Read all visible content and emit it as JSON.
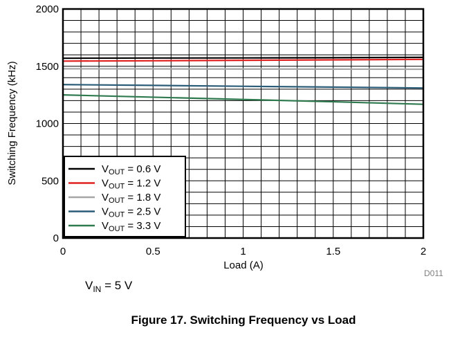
{
  "chart_data": {
    "type": "line",
    "title": "",
    "xlabel": "Load (A)",
    "ylabel": "Switching Frequency (kHz)",
    "xlim": [
      0,
      2
    ],
    "ylim": [
      0,
      2000
    ],
    "xticks": [
      "0",
      "0.5",
      "1",
      "1.5",
      "2"
    ],
    "yticks": [
      "0",
      "500",
      "1000",
      "1500",
      "2000"
    ],
    "grid": true,
    "legend_position": "bottom-left",
    "x": [
      0,
      0.5,
      1,
      1.5,
      2
    ],
    "series": [
      {
        "name_main": "V",
        "name_sub": "OUT",
        "name_rest": " = 0.6 V",
        "color": "#000000",
        "values": [
          1570,
          1572,
          1573,
          1575,
          1578
        ]
      },
      {
        "name_main": "V",
        "name_sub": "OUT",
        "name_rest": " = 1.2 V",
        "color": "#e0201f",
        "values": [
          1545,
          1548,
          1552,
          1556,
          1560
        ]
      },
      {
        "name_main": "V",
        "name_sub": "OUT",
        "name_rest": " = 1.8 V",
        "color": "#a6a6a6",
        "values": [
          1478,
          1477,
          1476,
          1475,
          1474
        ]
      },
      {
        "name_main": "V",
        "name_sub": "OUT",
        "name_rest": " = 2.5 V",
        "color": "#2a5c78",
        "values": [
          1340,
          1333,
          1325,
          1318,
          1310
        ]
      },
      {
        "name_main": "V",
        "name_sub": "OUT",
        "name_rest": " = 3.3 V",
        "color": "#2e7a4e",
        "values": [
          1250,
          1230,
          1210,
          1190,
          1168
        ]
      }
    ]
  },
  "figure_code": "D011",
  "condition": {
    "main": "V",
    "sub": "IN",
    "rest": " = 5 V"
  },
  "caption": "Figure 17. Switching Frequency vs Load"
}
